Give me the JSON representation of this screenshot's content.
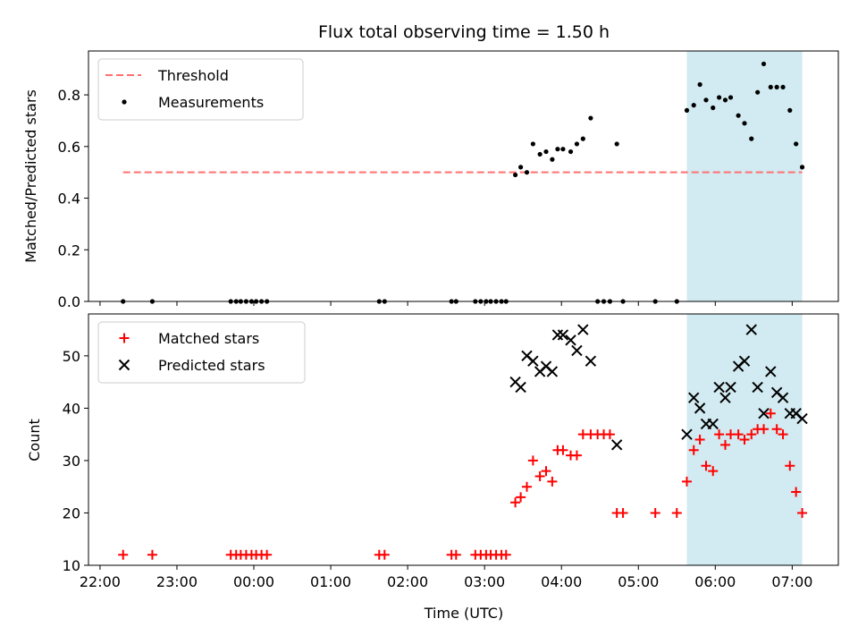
{
  "chart_data": {
    "type": "scatter",
    "title": "Flux total observing time = 1.50 h",
    "xlabel": "Time (UTC)",
    "x_unit": "hours since 00:00 UTC (negative = previous day)",
    "xlim": [
      -2.15,
      7.6
    ],
    "x_ticks": [
      {
        "value": -2,
        "label": "22:00"
      },
      {
        "value": -1,
        "label": "23:00"
      },
      {
        "value": 0,
        "label": "00:00"
      },
      {
        "value": 1,
        "label": "01:00"
      },
      {
        "value": 2,
        "label": "02:00"
      },
      {
        "value": 3,
        "label": "03:00"
      },
      {
        "value": 4,
        "label": "04:00"
      },
      {
        "value": 5,
        "label": "05:00"
      },
      {
        "value": 6,
        "label": "06:00"
      },
      {
        "value": 7,
        "label": "07:00"
      }
    ],
    "highlight_span": {
      "x0": 5.63,
      "x1": 7.13,
      "color": "#add8e6"
    },
    "panels": [
      {
        "ylabel": "Matched/Predicted stars",
        "ylim": [
          0,
          0.97
        ],
        "y_ticks": [
          {
            "value": 0.0,
            "label": "0.0"
          },
          {
            "value": 0.2,
            "label": "0.2"
          },
          {
            "value": 0.4,
            "label": "0.4"
          },
          {
            "value": 0.6,
            "label": "0.6"
          },
          {
            "value": 0.8,
            "label": "0.8"
          }
        ],
        "legend_position": "upper-left",
        "series": [
          {
            "name": "Threshold",
            "type": "line",
            "style": "dashed",
            "color": "#ff7070",
            "x": [
              -1.7,
              7.13
            ],
            "y": [
              0.5,
              0.5
            ]
          },
          {
            "name": "Measurements",
            "type": "scatter",
            "marker": "dot",
            "color": "#000000",
            "x": [
              -1.7,
              -1.32,
              -0.3,
              -0.23,
              -0.17,
              -0.1,
              -0.03,
              0.03,
              0.1,
              0.17,
              1.63,
              1.7,
              2.57,
              2.63,
              2.88,
              2.95,
              3.02,
              3.08,
              3.15,
              3.22,
              3.28,
              3.4,
              3.47,
              3.55,
              3.63,
              3.72,
              3.8,
              3.88,
              3.95,
              4.02,
              4.12,
              4.2,
              4.28,
              4.38,
              4.47,
              4.55,
              4.63,
              4.72,
              4.8,
              5.22,
              5.5,
              5.63,
              5.72,
              5.8,
              5.88,
              5.97,
              6.05,
              6.13,
              6.2,
              6.3,
              6.38,
              6.47,
              6.55,
              6.63,
              6.72,
              6.8,
              6.88,
              6.97,
              7.05,
              7.13
            ],
            "y": [
              0,
              0,
              0,
              0,
              0,
              0,
              0,
              0,
              0,
              0,
              0,
              0,
              0,
              0,
              0,
              0,
              0,
              0,
              0,
              0,
              0,
              0.49,
              0.52,
              0.5,
              0.61,
              0.57,
              0.58,
              0.55,
              0.59,
              0.59,
              0.58,
              0.61,
              0.63,
              0.71,
              0,
              0,
              0,
              0.61,
              0,
              0,
              0,
              0.74,
              0.76,
              0.84,
              0.78,
              0.75,
              0.79,
              0.78,
              0.79,
              0.72,
              0.69,
              0.63,
              0.81,
              0.92,
              0.83,
              0.83,
              0.83,
              0.74,
              0.61,
              0.52
            ]
          }
        ]
      },
      {
        "ylabel": "Count",
        "ylim": [
          10,
          58
        ],
        "y_ticks": [
          {
            "value": 10,
            "label": "10"
          },
          {
            "value": 20,
            "label": "20"
          },
          {
            "value": 30,
            "label": "30"
          },
          {
            "value": 40,
            "label": "40"
          },
          {
            "value": 50,
            "label": "50"
          }
        ],
        "legend_position": "upper-left",
        "series": [
          {
            "name": "Matched stars",
            "type": "scatter",
            "marker": "plus",
            "color": "#ff0000",
            "x": [
              -1.7,
              -1.32,
              -0.3,
              -0.23,
              -0.17,
              -0.1,
              -0.03,
              0.03,
              0.1,
              0.17,
              1.63,
              1.7,
              2.57,
              2.63,
              2.88,
              2.95,
              3.02,
              3.08,
              3.15,
              3.22,
              3.28,
              3.4,
              3.47,
              3.55,
              3.63,
              3.72,
              3.8,
              3.88,
              3.95,
              4.02,
              4.12,
              4.2,
              4.28,
              4.38,
              4.47,
              4.55,
              4.63,
              4.72,
              4.8,
              5.22,
              5.5,
              5.63,
              5.72,
              5.8,
              5.88,
              5.97,
              6.05,
              6.13,
              6.2,
              6.3,
              6.38,
              6.47,
              6.55,
              6.63,
              6.72,
              6.8,
              6.88,
              6.97,
              7.05,
              7.13
            ],
            "y": [
              12,
              12,
              12,
              12,
              12,
              12,
              12,
              12,
              12,
              12,
              12,
              12,
              12,
              12,
              12,
              12,
              12,
              12,
              12,
              12,
              12,
              22,
              23,
              25,
              30,
              27,
              28,
              26,
              32,
              32,
              31,
              31,
              35,
              35,
              35,
              35,
              35,
              20,
              20,
              20,
              20,
              26,
              32,
              34,
              29,
              28,
              35,
              33,
              35,
              35,
              34,
              35,
              36,
              36,
              39,
              36,
              35,
              29,
              24,
              20
            ]
          },
          {
            "name": "Predicted stars",
            "type": "scatter",
            "marker": "x",
            "color": "#000000",
            "x": [
              3.4,
              3.47,
              3.55,
              3.63,
              3.72,
              3.8,
              3.88,
              3.95,
              4.02,
              4.12,
              4.2,
              4.28,
              4.38,
              4.72,
              5.63,
              5.72,
              5.8,
              5.88,
              5.97,
              6.05,
              6.13,
              6.2,
              6.3,
              6.38,
              6.47,
              6.55,
              6.63,
              6.72,
              6.8,
              6.88,
              6.97,
              7.05,
              7.13
            ],
            "y": [
              45,
              44,
              50,
              49,
              47,
              48,
              47,
              54,
              54,
              53,
              51,
              55,
              49,
              33,
              35,
              42,
              40,
              37,
              37,
              44,
              42,
              44,
              48,
              49,
              55,
              44,
              39,
              47,
              43,
              42,
              39,
              39,
              38
            ]
          }
        ]
      }
    ]
  }
}
